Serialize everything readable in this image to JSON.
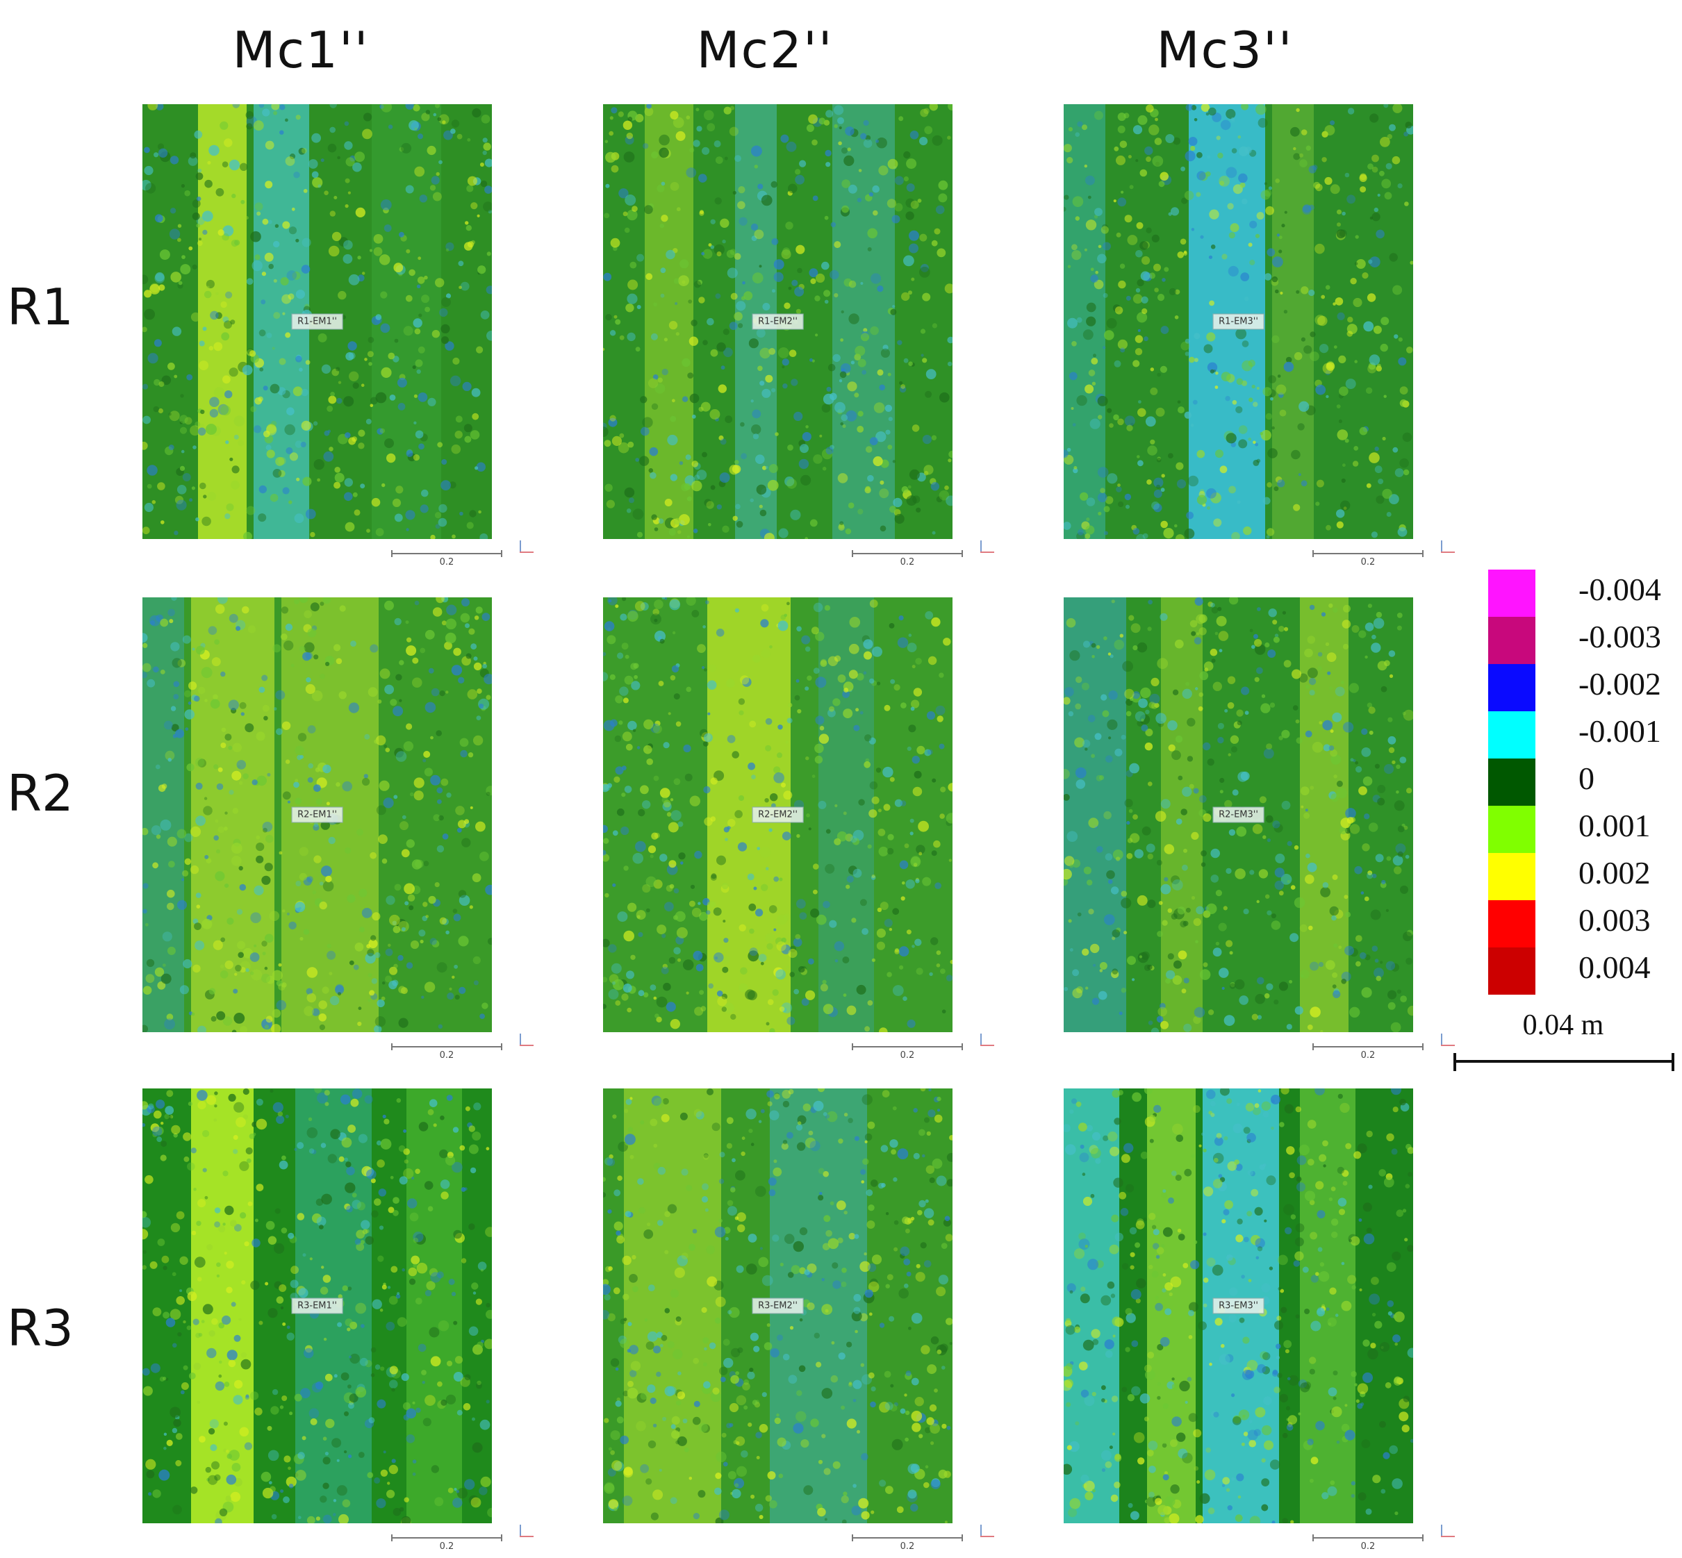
{
  "columns": [
    "Mc1''",
    "Mc2''",
    "Mc3''"
  ],
  "rows": [
    "R1",
    "R2",
    "R3"
  ],
  "tiles": [
    [
      "R1-EM1''",
      "R1-EM2''",
      "R1-EM3''"
    ],
    [
      "R2-EM1''",
      "R2-EM2''",
      "R2-EM3''"
    ],
    [
      "R3-EM1''",
      "R3-EM2''",
      "R3-EM3''"
    ]
  ],
  "tile_scale_label": "0.2",
  "legend": {
    "items": [
      {
        "label": "-0.004",
        "color": "#ff14ff"
      },
      {
        "label": "-0.003",
        "color": "#c8087c"
      },
      {
        "label": "-0.002",
        "color": "#0a0aff"
      },
      {
        "label": "-0.001",
        "color": "#00ffff"
      },
      {
        "label": "0",
        "color": "#005800"
      },
      {
        "label": "0.001",
        "color": "#80ff00"
      },
      {
        "label": "0.002",
        "color": "#ffff00"
      },
      {
        "label": "0.003",
        "color": "#ff0000"
      },
      {
        "label": "0.004",
        "color": "#cc0000"
      }
    ]
  },
  "scale_bar": {
    "label": "0.04 m"
  }
}
